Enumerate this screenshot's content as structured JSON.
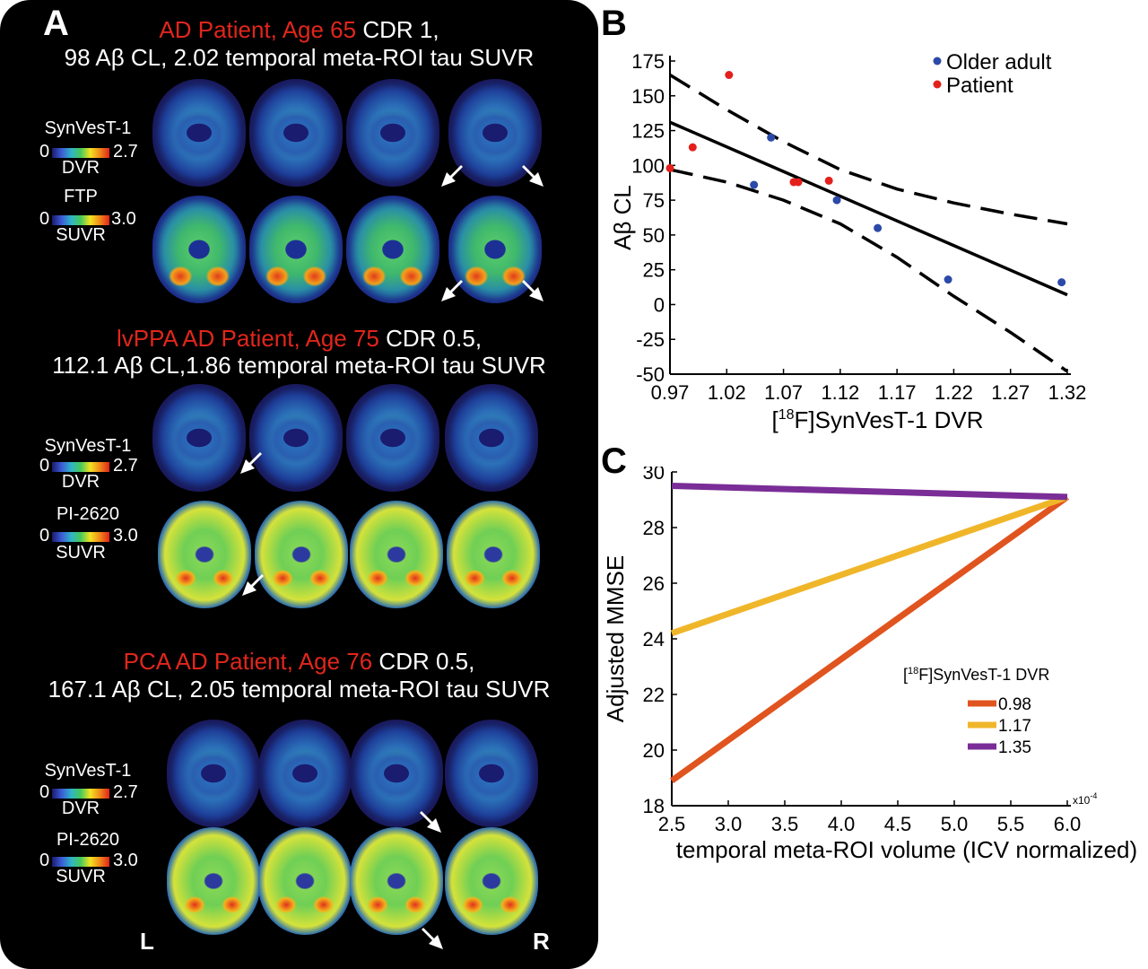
{
  "panel_a": {
    "letter": "A",
    "cases": [
      {
        "title_red": "AD Patient, Age 65",
        "title_white": "CDR 1,",
        "subtitle": "98 Aβ CL, 2.02 temporal meta-ROI tau SUVR",
        "row1": {
          "tracer": "SynVesT-1",
          "min": "0",
          "max": "2.7",
          "unit": "DVR"
        },
        "row2": {
          "tracer": "FTP",
          "min": "0",
          "max": "3.0",
          "unit": "SUVR"
        }
      },
      {
        "title_red": "lvPPA AD Patient, Age 75",
        "title_white": "CDR 0.5,",
        "subtitle": "112.1 Aβ CL,1.86 temporal meta-ROI tau SUVR",
        "row1": {
          "tracer": "SynVesT-1",
          "min": "0",
          "max": "2.7",
          "unit": "DVR"
        },
        "row2": {
          "tracer": "PI-2620",
          "min": "0",
          "max": "3.0",
          "unit": "SUVR"
        }
      },
      {
        "title_red": "PCA AD Patient, Age 76",
        "title_white": "CDR 0.5,",
        "subtitle": "167.1 Aβ CL, 2.05 temporal meta-ROI tau SUVR",
        "row1": {
          "tracer": "SynVesT-1",
          "min": "0",
          "max": "2.7",
          "unit": "DVR"
        },
        "row2": {
          "tracer": "PI-2620",
          "min": "0",
          "max": "3.0",
          "unit": "SUVR"
        }
      }
    ],
    "left_label": "L",
    "right_label": "R"
  },
  "panel_b": {
    "letter": "B"
  },
  "panel_c": {
    "letter": "C"
  },
  "chart_data": [
    {
      "type": "scatter",
      "ylabel": "Aβ CL",
      "xlabel_prefix": "[",
      "xlabel_sup": "18",
      "xlabel_main": "F]SynVesT-1 DVR",
      "x_ticks": [
        "0.97",
        "1.02",
        "1.07",
        "1.12",
        "1.17",
        "1.22",
        "1.27",
        "1.32"
      ],
      "y_ticks": [
        "175",
        "150",
        "125",
        "100",
        "75",
        "50",
        "25",
        "0",
        "-25",
        "-50"
      ],
      "xlim": [
        0.97,
        1.32
      ],
      "ylim": [
        -50,
        175
      ],
      "series": [
        {
          "name": "Older adult",
          "color": "#2b4aa8",
          "points": [
            [
              1.044,
              86
            ],
            [
              1.059,
              120
            ],
            [
              1.117,
              75
            ],
            [
              1.153,
              55
            ],
            [
              1.215,
              18
            ],
            [
              1.315,
              16
            ]
          ]
        },
        {
          "name": "Patient",
          "color": "#e3201b",
          "points": [
            [
              0.97,
              98
            ],
            [
              0.99,
              113
            ],
            [
              1.022,
              165
            ],
            [
              1.079,
              88
            ],
            [
              1.083,
              88
            ],
            [
              1.11,
              89
            ]
          ]
        }
      ],
      "fit_line": [
        [
          0.97,
          131
        ],
        [
          1.32,
          7
        ]
      ],
      "ci_upper": [
        [
          0.97,
          165
        ],
        [
          1.02,
          140
        ],
        [
          1.07,
          117
        ],
        [
          1.12,
          97
        ],
        [
          1.17,
          83
        ],
        [
          1.22,
          73
        ],
        [
          1.27,
          65
        ],
        [
          1.32,
          58
        ]
      ],
      "ci_lower": [
        [
          0.97,
          97
        ],
        [
          1.02,
          88
        ],
        [
          1.07,
          75
        ],
        [
          1.12,
          58
        ],
        [
          1.17,
          34
        ],
        [
          1.22,
          6
        ],
        [
          1.27,
          -20
        ],
        [
          1.32,
          -48
        ]
      ],
      "legend_position": "top-right"
    },
    {
      "type": "line",
      "ylabel": "Adjusted MMSE",
      "xlabel": "temporal meta-ROI volume (ICV normalized)",
      "x_multiplier": "x10",
      "x_multiplier_exp": "-4",
      "x_ticks": [
        "2.5",
        "3.0",
        "3.5",
        "4.0",
        "4.5",
        "5.0",
        "5.5",
        "6.0"
      ],
      "y_ticks": [
        "30",
        "28",
        "26",
        "24",
        "22",
        "20",
        "18"
      ],
      "xlim": [
        2.5,
        6.0
      ],
      "ylim": [
        18,
        30
      ],
      "legend_title_prefix": "[",
      "legend_title_sup": "18",
      "legend_title_main": "F]SynVesT-1 DVR",
      "legend_position": "bottom-right",
      "series": [
        {
          "name": "0.98",
          "color": "#e0541f",
          "x": [
            2.5,
            6.0
          ],
          "y": [
            18.9,
            29.1
          ]
        },
        {
          "name": "1.17",
          "color": "#f0b62a",
          "x": [
            2.5,
            6.0
          ],
          "y": [
            24.2,
            29.1
          ]
        },
        {
          "name": "1.35",
          "color": "#7a2d97",
          "x": [
            2.5,
            6.0
          ],
          "y": [
            29.5,
            29.1
          ]
        }
      ]
    }
  ]
}
